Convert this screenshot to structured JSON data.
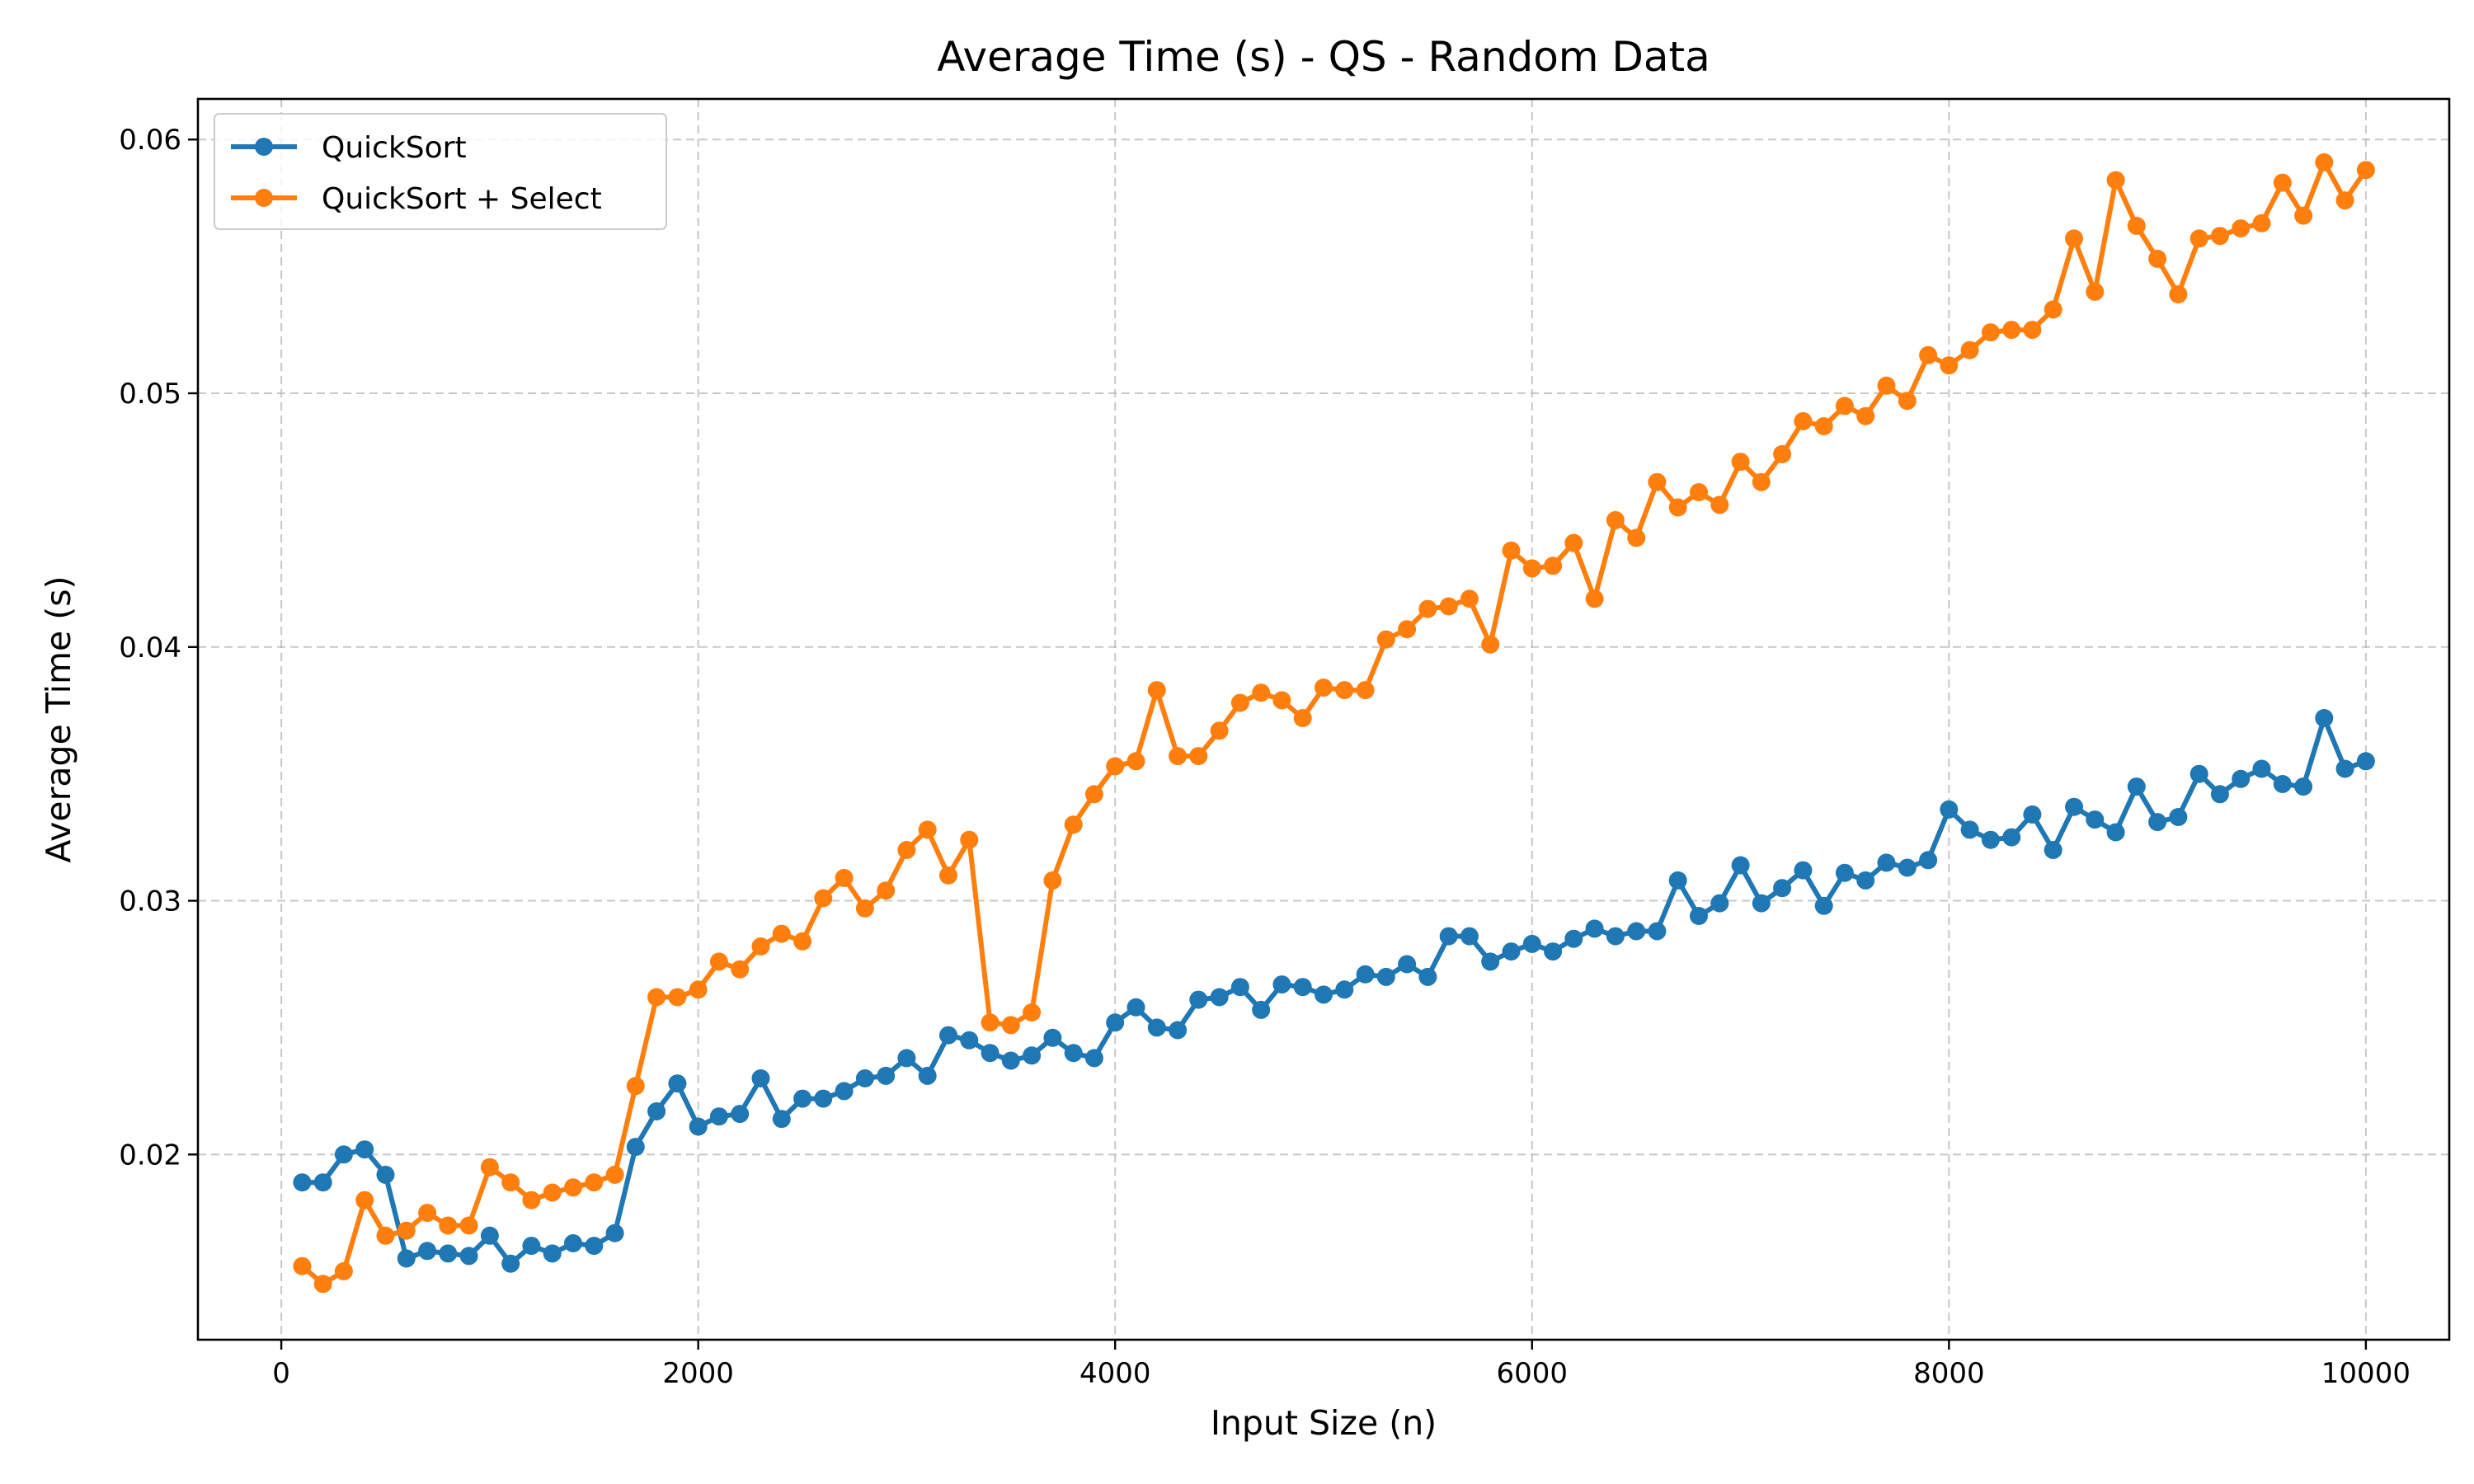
{
  "chart_data": {
    "type": "line",
    "title": "Average Time (s) - QS - Random Data",
    "xlabel": "Input Size (n)",
    "ylabel": "Average Time (s)",
    "xlim": [
      -400,
      10400
    ],
    "ylim": [
      0.0127,
      0.0616
    ],
    "xticks": [
      0,
      2000,
      4000,
      6000,
      8000,
      10000
    ],
    "yticks": [
      0.02,
      0.03,
      0.04,
      0.05,
      0.06
    ],
    "xtick_labels": [
      "0",
      "2000",
      "4000",
      "6000",
      "8000",
      "10000"
    ],
    "ytick_labels": [
      "0.02",
      "0.03",
      "0.04",
      "0.05",
      "0.06"
    ],
    "grid": true,
    "legend_position": "top-left",
    "x": [
      100,
      200,
      300,
      400,
      500,
      600,
      700,
      800,
      900,
      1000,
      1100,
      1200,
      1300,
      1400,
      1500,
      1600,
      1700,
      1800,
      1900,
      2000,
      2100,
      2200,
      2300,
      2400,
      2500,
      2600,
      2700,
      2800,
      2900,
      3000,
      3100,
      3200,
      3300,
      3400,
      3500,
      3600,
      3700,
      3800,
      3900,
      4000,
      4100,
      4200,
      4300,
      4400,
      4500,
      4600,
      4700,
      4800,
      4900,
      5000,
      5100,
      5200,
      5300,
      5400,
      5500,
      5600,
      5700,
      5800,
      5900,
      6000,
      6100,
      6200,
      6300,
      6400,
      6500,
      6600,
      6700,
      6800,
      6900,
      7000,
      7100,
      7200,
      7300,
      7400,
      7500,
      7600,
      7700,
      7800,
      7900,
      8000,
      8100,
      8200,
      8300,
      8400,
      8500,
      8600,
      8700,
      8800,
      8900,
      9000,
      9100,
      9200,
      9300,
      9400,
      9500,
      9600,
      9700,
      9800,
      9900,
      10000
    ],
    "series": [
      {
        "name": "QuickSort",
        "color": "#1f77b4",
        "values": [
          0.0189,
          0.0189,
          0.02,
          0.0202,
          0.0192,
          0.0159,
          0.0162,
          0.0161,
          0.016,
          0.0168,
          0.0157,
          0.0164,
          0.0161,
          0.0165,
          0.0164,
          0.0169,
          0.0203,
          0.0217,
          0.0228,
          0.0211,
          0.0215,
          0.0216,
          0.023,
          0.0214,
          0.0222,
          0.0222,
          0.0225,
          0.023,
          0.0231,
          0.0238,
          0.0231,
          0.0247,
          0.0245,
          0.024,
          0.0237,
          0.0239,
          0.0246,
          0.024,
          0.0238,
          0.0252,
          0.0258,
          0.025,
          0.0249,
          0.0261,
          0.0262,
          0.0266,
          0.0257,
          0.0267,
          0.0266,
          0.0263,
          0.0265,
          0.0271,
          0.027,
          0.0275,
          0.027,
          0.0286,
          0.0286,
          0.0276,
          0.028,
          0.0283,
          0.028,
          0.0285,
          0.0289,
          0.0286,
          0.0288,
          0.0288,
          0.0308,
          0.0294,
          0.0299,
          0.0314,
          0.0299,
          0.0305,
          0.0312,
          0.0298,
          0.0311,
          0.0308,
          0.0315,
          0.0313,
          0.0316,
          0.0336,
          0.0328,
          0.0324,
          0.0325,
          0.0334,
          0.032,
          0.0337,
          0.0332,
          0.0327,
          0.0345,
          0.0331,
          0.0333,
          0.035,
          0.0342,
          0.0348,
          0.0352,
          0.0346,
          0.0345,
          0.0372,
          0.0352,
          0.0355
        ]
      },
      {
        "name": "QuickSort + Select",
        "color": "#ff7f0e",
        "values": [
          0.0156,
          0.0149,
          0.0154,
          0.0182,
          0.0168,
          0.017,
          0.0177,
          0.0172,
          0.0172,
          0.0195,
          0.0189,
          0.0182,
          0.0185,
          0.0187,
          0.0189,
          0.0192,
          0.0227,
          0.0262,
          0.0262,
          0.0265,
          0.0276,
          0.0273,
          0.0282,
          0.0287,
          0.0284,
          0.0301,
          0.0309,
          0.0297,
          0.0304,
          0.032,
          0.0328,
          0.031,
          0.0324,
          0.0252,
          0.0251,
          0.0256,
          0.0308,
          0.033,
          0.0342,
          0.0353,
          0.0355,
          0.0383,
          0.0357,
          0.0357,
          0.0367,
          0.0378,
          0.0382,
          0.0379,
          0.0372,
          0.0384,
          0.0383,
          0.0383,
          0.0403,
          0.0407,
          0.0415,
          0.0416,
          0.0419,
          0.0401,
          0.0438,
          0.0431,
          0.0432,
          0.0441,
          0.0419,
          0.045,
          0.0443,
          0.0465,
          0.0455,
          0.0461,
          0.0456,
          0.0473,
          0.0465,
          0.0476,
          0.0489,
          0.0487,
          0.0495,
          0.0491,
          0.0503,
          0.0497,
          0.0515,
          0.0511,
          0.0517,
          0.0524,
          0.0525,
          0.0525,
          0.0533,
          0.0561,
          0.054,
          0.0584,
          0.0566,
          0.0553,
          0.0539,
          0.0561,
          0.0562,
          0.0565,
          0.0567,
          0.0583,
          0.057,
          0.0591,
          0.0576,
          0.0588
        ]
      }
    ]
  }
}
